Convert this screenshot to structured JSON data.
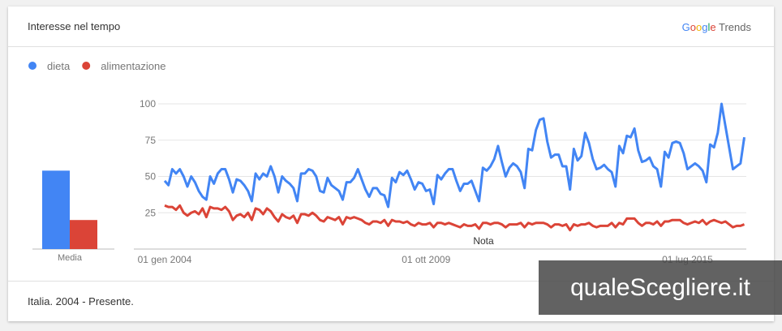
{
  "chart_data": {
    "type": "line",
    "title": "Interesse nel tempo",
    "brand": "Google",
    "product": "Trends",
    "footer": "Italia. 2004 - Presente.",
    "annotation": "Nota",
    "average_label": "Media",
    "watermark": "qualeScegliere.it",
    "categories": [
      "01 gen 2004",
      null,
      null,
      null,
      null,
      null,
      null,
      null,
      null,
      null,
      null,
      null,
      null,
      null,
      null,
      null,
      null,
      null,
      null,
      null,
      null,
      null,
      null,
      null,
      null,
      null,
      null,
      null,
      null,
      null,
      null,
      null,
      null,
      null,
      null,
      null,
      null,
      null,
      null,
      null,
      null,
      null,
      null,
      null,
      null,
      null,
      null,
      null,
      null,
      null,
      null,
      null,
      null,
      null,
      null,
      null,
      null,
      null,
      null,
      null,
      null,
      null,
      null,
      null,
      null,
      null,
      null,
      null,
      null,
      "01 ott 2009",
      null,
      null,
      null,
      null,
      null,
      null,
      null,
      null,
      null,
      null,
      null,
      null,
      null,
      null,
      null,
      null,
      null,
      null,
      null,
      null,
      null,
      null,
      null,
      null,
      null,
      null,
      null,
      null,
      null,
      null,
      null,
      null,
      null,
      null,
      null,
      null,
      null,
      null,
      null,
      null,
      null,
      null,
      null,
      null,
      null,
      null,
      null,
      null,
      null,
      null,
      null,
      null,
      null,
      null,
      null,
      null,
      null,
      null,
      null,
      null,
      null,
      null,
      null,
      null,
      null,
      null,
      null,
      null,
      "01 lug 2015",
      null,
      null,
      null,
      null,
      null,
      null,
      null,
      null,
      null,
      null,
      null,
      null,
      null,
      null,
      null
    ],
    "series": [
      {
        "name": "dieta",
        "color": "#4285f4",
        "average": 54,
        "values": [
          47,
          44,
          55,
          52,
          55,
          50,
          43,
          50,
          46,
          40,
          36,
          34,
          50,
          45,
          52,
          55,
          55,
          48,
          39,
          48,
          47,
          44,
          40,
          33,
          52,
          48,
          52,
          50,
          57,
          50,
          39,
          50,
          47,
          45,
          42,
          33,
          52,
          52,
          55,
          54,
          50,
          40,
          39,
          49,
          44,
          42,
          40,
          34,
          46,
          46,
          49,
          55,
          48,
          41,
          36,
          42,
          42,
          38,
          37,
          29,
          49,
          46,
          53,
          51,
          54,
          48,
          41,
          46,
          45,
          40,
          41,
          31,
          51,
          48,
          52,
          55,
          55,
          47,
          40,
          45,
          45,
          47,
          40,
          33,
          56,
          54,
          57,
          62,
          71,
          60,
          50,
          56,
          59,
          57,
          53,
          42,
          69,
          68,
          82,
          89,
          90,
          74,
          63,
          65,
          65,
          57,
          57,
          41,
          69,
          61,
          64,
          80,
          73,
          62,
          55,
          56,
          58,
          55,
          53,
          43,
          71,
          66,
          78,
          77,
          83,
          68,
          60,
          61,
          63,
          57,
          55,
          43,
          67,
          63,
          73,
          74,
          73,
          66,
          55,
          57,
          59,
          57,
          54,
          46,
          72,
          70,
          80,
          100,
          85,
          70,
          55,
          57,
          59,
          77
        ]
      },
      {
        "name": "alimentazione",
        "color": "#db4437",
        "average": 20,
        "values": [
          30,
          29,
          29,
          27,
          30,
          25,
          23,
          25,
          26,
          24,
          28,
          22,
          29,
          28,
          28,
          27,
          29,
          26,
          20,
          23,
          24,
          22,
          25,
          20,
          28,
          27,
          24,
          28,
          26,
          22,
          19,
          24,
          22,
          21,
          23,
          18,
          24,
          24,
          23,
          25,
          23,
          20,
          19,
          22,
          21,
          20,
          22,
          17,
          22,
          21,
          22,
          21,
          20,
          18,
          17,
          19,
          19,
          18,
          20,
          16,
          20,
          19,
          19,
          18,
          19,
          17,
          16,
          18,
          17,
          17,
          18,
          15,
          18,
          18,
          17,
          18,
          17,
          16,
          15,
          17,
          16,
          16,
          17,
          14,
          18,
          18,
          17,
          18,
          18,
          17,
          15,
          17,
          17,
          17,
          18,
          15,
          18,
          17,
          18,
          18,
          18,
          17,
          15,
          17,
          17,
          16,
          17,
          13,
          17,
          16,
          17,
          17,
          18,
          16,
          15,
          16,
          16,
          16,
          18,
          15,
          18,
          17,
          21,
          21,
          21,
          18,
          16,
          18,
          18,
          17,
          19,
          16,
          19,
          19,
          20,
          20,
          20,
          18,
          17,
          18,
          19,
          18,
          20,
          17,
          19,
          20,
          19,
          18,
          19,
          17,
          15,
          16,
          16,
          17
        ]
      }
    ],
    "ylim": [
      0,
      100
    ],
    "yticks": [
      25,
      50,
      75,
      100
    ],
    "grid": true
  }
}
